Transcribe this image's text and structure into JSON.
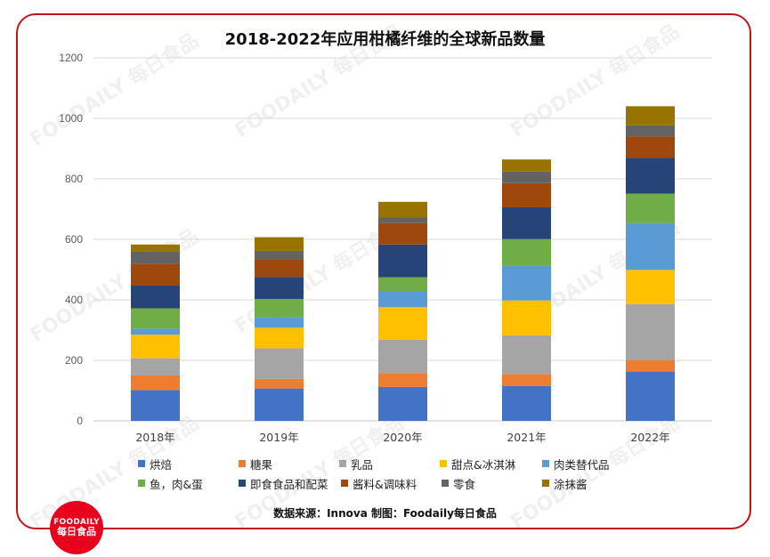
{
  "colors": {
    "frame": "#c0141c",
    "logo": "#e8001c"
  },
  "logo": {
    "line1": "FOODAILY",
    "line2": "每日食品"
  },
  "footer": "数据来源：Innova   制图：Foodaily每日食品",
  "chart_data": {
    "type": "stacked-bar",
    "title": "2018-2022年应用柑橘纤维的全球新品数量",
    "categories": [
      "2018年",
      "2019年",
      "2020年",
      "2021年",
      "2022年"
    ],
    "ylim": [
      0,
      1200
    ],
    "yticks": [
      0,
      200,
      400,
      600,
      800,
      1000,
      1200
    ],
    "grid": true,
    "legend_position": "bottom",
    "series": [
      {
        "name": "烘焙",
        "color": "#4472c4",
        "values": [
          102,
          107,
          112,
          115,
          163
        ]
      },
      {
        "name": "糖果",
        "color": "#ed7d31",
        "values": [
          48,
          32,
          46,
          40,
          37
        ]
      },
      {
        "name": "乳品",
        "color": "#a5a5a5",
        "values": [
          57,
          101,
          110,
          128,
          186
        ]
      },
      {
        "name": "甜点&冰淇淋",
        "color": "#ffc000",
        "values": [
          78,
          68,
          108,
          115,
          113
        ]
      },
      {
        "name": "肉类替代品",
        "color": "#5b9bd5",
        "values": [
          20,
          35,
          52,
          115,
          155
        ]
      },
      {
        "name": "鱼，肉&蛋",
        "color": "#70ad47",
        "values": [
          67,
          60,
          47,
          88,
          97
        ]
      },
      {
        "name": "即食食品和配菜",
        "color": "#264478",
        "values": [
          75,
          73,
          108,
          105,
          118
        ]
      },
      {
        "name": "酱料&调味料",
        "color": "#9e480e",
        "values": [
          73,
          58,
          71,
          80,
          71
        ]
      },
      {
        "name": "零食",
        "color": "#636363",
        "values": [
          40,
          28,
          18,
          38,
          37
        ]
      },
      {
        "name": "涂抹酱",
        "color": "#997300",
        "values": [
          23,
          45,
          52,
          40,
          63
        ]
      }
    ]
  }
}
